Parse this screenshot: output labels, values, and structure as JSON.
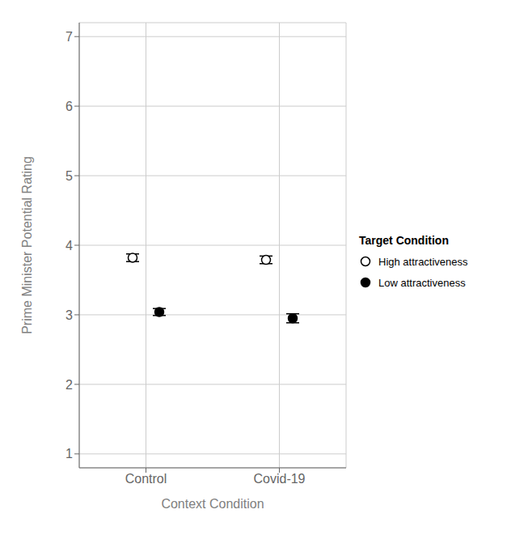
{
  "chart_data": {
    "type": "scatter",
    "categories": [
      "Control",
      "Covid-19"
    ],
    "x_label": "Context Condition",
    "y_label": "Prime Minister Potential Rating",
    "ylim": [
      0.8,
      7.2
    ],
    "yticks": [
      1,
      2,
      3,
      4,
      5,
      6,
      7
    ],
    "grid": true,
    "legend": "right",
    "legend_title": "Target Condition",
    "series": [
      {
        "name": "High attractiveness",
        "color": "#000000",
        "marker": "open_circle",
        "values": [
          3.82,
          3.79
        ],
        "errors": [
          0.055,
          0.055
        ]
      },
      {
        "name": "Low attractiveness",
        "color": "#000000",
        "marker": "filled_circle",
        "values": [
          3.04,
          2.95
        ],
        "errors": [
          0.05,
          0.065
        ]
      }
    ]
  }
}
